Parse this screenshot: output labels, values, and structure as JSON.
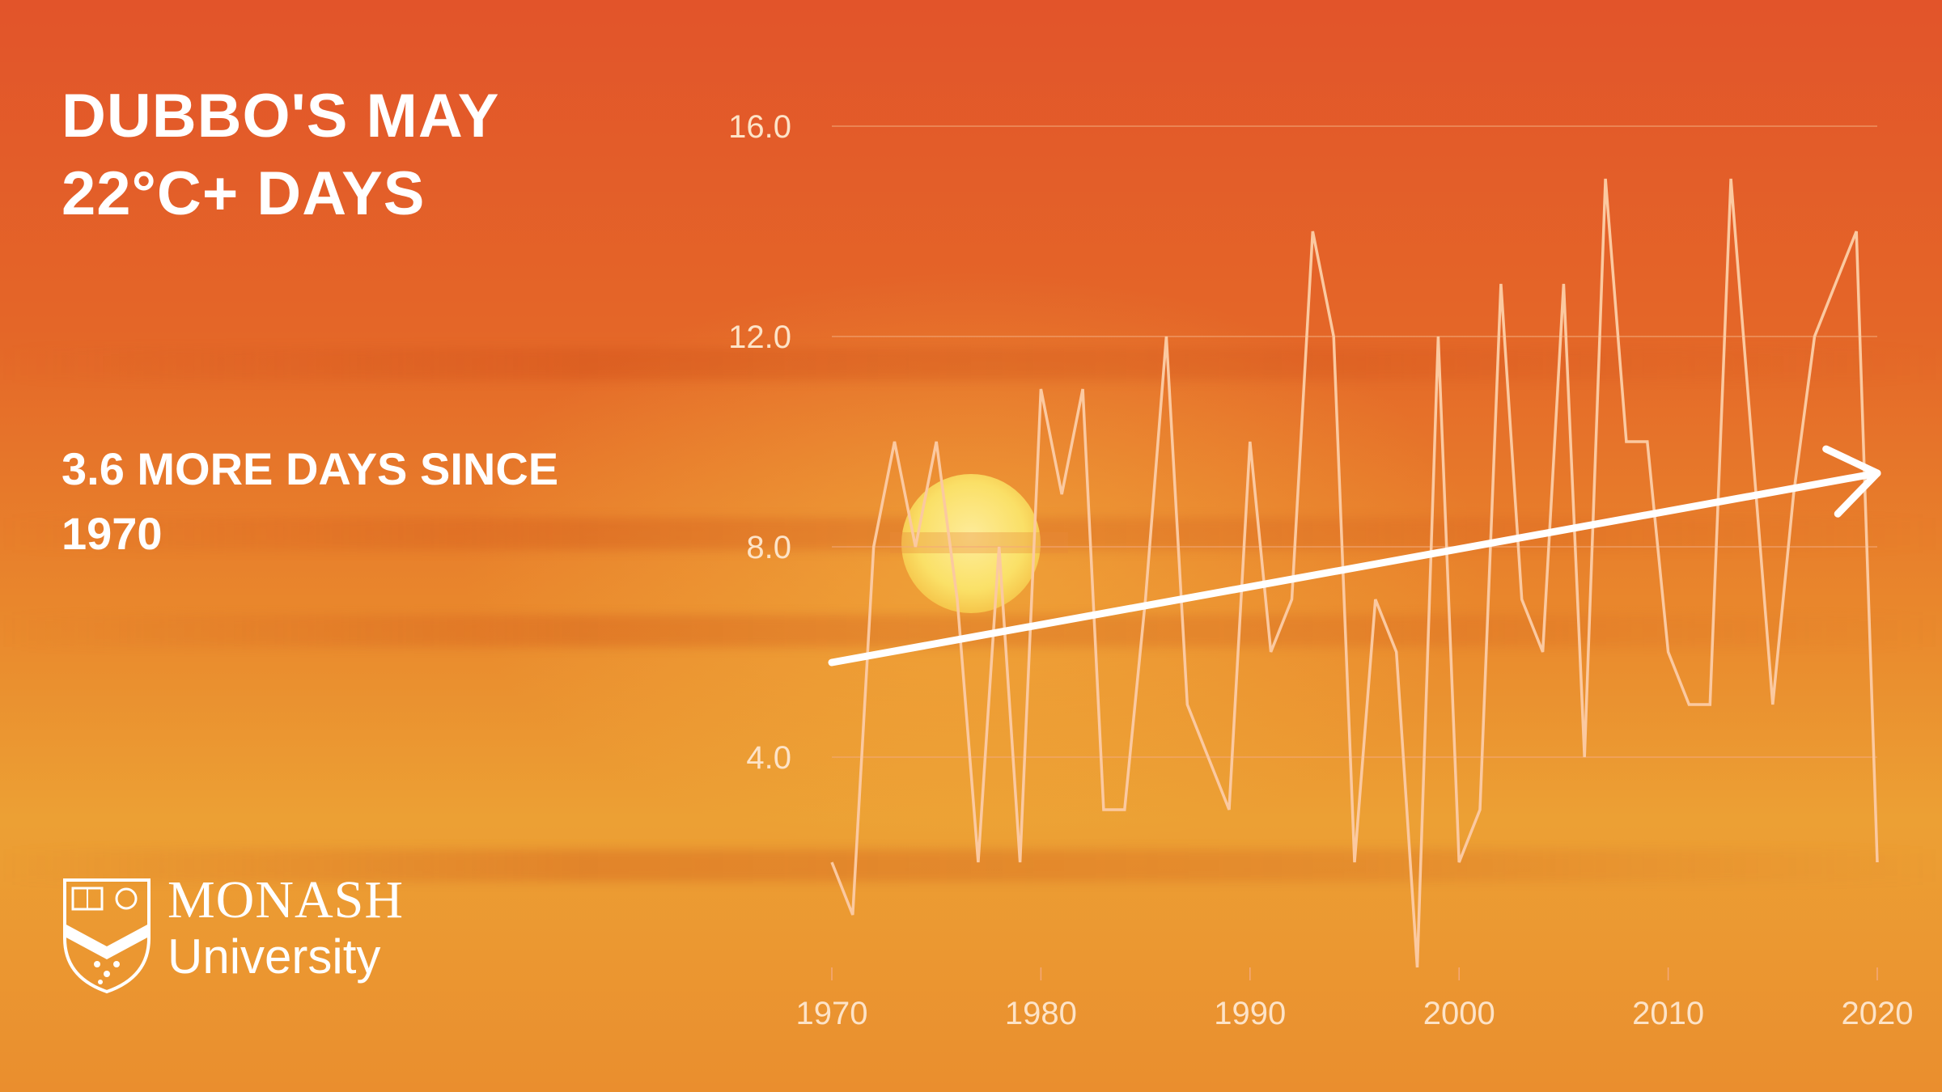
{
  "title": "DUBBO'S MAY 22°C+ DAYS",
  "subtitle": "3.6 MORE DAYS SINCE 1970",
  "logo": {
    "name": "MONASH",
    "sub": "University"
  },
  "colors": {
    "line": "#fbc9a0",
    "trend": "#ffffff",
    "grid": "#f4a97a",
    "sun": "#fbe46a"
  },
  "chart_data": {
    "type": "line",
    "title": "DUBBO'S MAY 22°C+ DAYS",
    "xlabel": "",
    "ylabel": "",
    "xlim": [
      1970,
      2020
    ],
    "ylim": [
      0,
      16
    ],
    "x_ticks": [
      1970,
      1980,
      1990,
      2000,
      2010,
      2020
    ],
    "y_ticks": [
      4.0,
      8.0,
      12.0,
      16.0
    ],
    "y_tick_labels": [
      "4.0",
      "8.0",
      "12.0",
      "16.0"
    ],
    "grid": true,
    "series": [
      {
        "x": [
          1970,
          1971,
          1972,
          1973,
          1974,
          1975,
          1976,
          1977,
          1978,
          1979,
          1980,
          1981,
          1982,
          1983,
          1984,
          1985,
          1986,
          1987,
          1988,
          1989,
          1990,
          1991,
          1992,
          1993,
          1994,
          1995,
          1996,
          1997,
          1998,
          1999,
          2000,
          2001,
          2002,
          2003,
          2004,
          2005,
          2006,
          2007,
          2008,
          2009,
          2010,
          2011,
          2012,
          2013,
          2014,
          2015,
          2016,
          2017,
          2018,
          2019,
          2020
        ],
        "y": [
          2,
          1,
          8,
          10,
          8,
          10,
          7,
          2,
          8,
          2,
          11,
          9,
          11,
          3,
          3,
          7,
          12,
          5,
          4,
          3,
          10,
          6,
          7,
          14,
          12,
          2,
          7,
          6,
          0,
          12,
          2,
          3,
          13,
          7,
          6,
          13,
          4,
          15,
          10,
          10,
          6,
          5,
          5,
          15,
          10,
          5,
          9,
          12,
          13,
          14,
          2
        ]
      }
    ],
    "trend": {
      "x": [
        1970,
        2020
      ],
      "y": [
        5.8,
        9.4
      ]
    }
  }
}
